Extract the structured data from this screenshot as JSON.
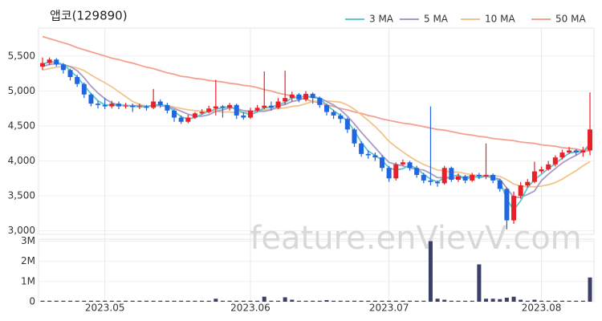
{
  "chart_data": {
    "type": "candlestick",
    "title": "앱코(129890)",
    "watermark": "feature.enVievV.com",
    "categories": [
      null,
      null,
      null,
      null,
      null,
      null,
      null,
      null,
      null,
      "2023.05",
      null,
      null,
      null,
      null,
      null,
      null,
      null,
      null,
      null,
      null,
      null,
      null,
      null,
      null,
      null,
      null,
      null,
      null,
      null,
      null,
      "2023.06",
      null,
      null,
      null,
      null,
      null,
      null,
      null,
      null,
      null,
      null,
      null,
      null,
      null,
      null,
      null,
      null,
      null,
      null,
      null,
      "2023.07",
      null,
      null,
      null,
      null,
      null,
      null,
      null,
      null,
      null,
      null,
      null,
      null,
      null,
      null,
      null,
      null,
      null,
      null,
      null,
      null,
      null,
      "2023.08",
      null,
      null,
      null,
      null,
      null,
      null,
      null
    ],
    "open": [
      5350,
      5400,
      5450,
      5380,
      5300,
      5200,
      5100,
      4950,
      4820,
      4800,
      4780,
      4820,
      4780,
      4790,
      4770,
      4780,
      4760,
      4850,
      4800,
      4720,
      4620,
      4560,
      4620,
      4680,
      4700,
      4750,
      4780,
      4760,
      4800,
      4650,
      4620,
      4720,
      4760,
      4790,
      4760,
      4850,
      4900,
      4950,
      4880,
      4960,
      4900,
      4800,
      4700,
      4650,
      4600,
      4450,
      4250,
      4100,
      4080,
      4050,
      3900,
      3750,
      3950,
      3980,
      3900,
      3800,
      3720,
      3700,
      3680,
      3900,
      3730,
      3780,
      3720,
      3800,
      3780,
      3800,
      3720,
      3600,
      3150,
      3500,
      3650,
      3700,
      3850,
      3880,
      3950,
      4050,
      4120,
      4150,
      4120,
      4150
    ],
    "high": [
      5480,
      5480,
      5470,
      5400,
      5320,
      5230,
      5120,
      4970,
      4860,
      4900,
      4860,
      4850,
      4830,
      4820,
      4820,
      4800,
      5030,
      4880,
      4830,
      4740,
      4650,
      4660,
      4700,
      4740,
      4790,
      5160,
      4800,
      4830,
      4820,
      4700,
      4760,
      4800,
      5280,
      4850,
      4900,
      5290,
      4990,
      4970,
      5000,
      4980,
      4920,
      4820,
      4730,
      4680,
      4620,
      4470,
      4280,
      4150,
      4120,
      4080,
      3930,
      3980,
      4020,
      4000,
      3930,
      3830,
      4780,
      3720,
      3930,
      3920,
      3820,
      3800,
      3830,
      3830,
      4250,
      3820,
      3740,
      3620,
      3560,
      3700,
      3740,
      3990,
      3920,
      4000,
      4080,
      4160,
      4200,
      4170,
      4200,
      4980
    ],
    "low": [
      5300,
      5370,
      5350,
      5250,
      5150,
      5060,
      4900,
      4780,
      4750,
      4740,
      4750,
      4740,
      4750,
      4700,
      4740,
      4720,
      4740,
      4760,
      4680,
      4560,
      4530,
      4540,
      4600,
      4660,
      4680,
      4650,
      4620,
      4720,
      4600,
      4590,
      4600,
      4700,
      4740,
      4720,
      4740,
      4800,
      4850,
      4840,
      4850,
      4820,
      4760,
      4650,
      4600,
      4540,
      4400,
      4200,
      4060,
      4030,
      4000,
      3850,
      3700,
      3720,
      3930,
      3860,
      3760,
      3680,
      3650,
      3630,
      3660,
      3700,
      3700,
      3680,
      3700,
      3740,
      3740,
      3680,
      3560,
      3020,
      3100,
      3460,
      3620,
      3680,
      3820,
      3860,
      3920,
      4020,
      4100,
      4080,
      4060,
      4080
    ],
    "close": [
      5400,
      5450,
      5380,
      5300,
      5200,
      5100,
      4950,
      4820,
      4800,
      4780,
      4820,
      4780,
      4790,
      4770,
      4780,
      4760,
      4850,
      4800,
      4720,
      4620,
      4560,
      4620,
      4680,
      4700,
      4750,
      4780,
      4760,
      4800,
      4650,
      4620,
      4720,
      4760,
      4790,
      4760,
      4850,
      4900,
      4950,
      4880,
      4960,
      4900,
      4800,
      4700,
      4650,
      4600,
      4450,
      4250,
      4100,
      4080,
      4050,
      3900,
      3750,
      3950,
      3980,
      3900,
      3800,
      3720,
      3700,
      3680,
      3900,
      3730,
      3780,
      3720,
      3800,
      3780,
      3800,
      3720,
      3600,
      3150,
      3500,
      3650,
      3700,
      3850,
      3880,
      3950,
      4050,
      4120,
      4150,
      4120,
      4150,
      4450
    ],
    "volume": [
      50000,
      50000,
      50000,
      50000,
      50000,
      50000,
      50000,
      50000,
      50000,
      50000,
      50000,
      50000,
      50000,
      50000,
      50000,
      50000,
      50000,
      50000,
      50000,
      50000,
      50000,
      50000,
      50000,
      50000,
      50000,
      150000,
      50000,
      50000,
      50000,
      50000,
      50000,
      50000,
      250000,
      50000,
      50000,
      220000,
      100000,
      50000,
      50000,
      50000,
      50000,
      80000,
      50000,
      50000,
      50000,
      50000,
      50000,
      50000,
      50000,
      50000,
      50000,
      50000,
      50000,
      50000,
      50000,
      50000,
      3000000,
      150000,
      100000,
      50000,
      50000,
      50000,
      50000,
      1850000,
      150000,
      150000,
      130000,
      200000,
      250000,
      100000,
      50000,
      100000,
      50000,
      50000,
      50000,
      50000,
      50000,
      50000,
      50000,
      1200000
    ],
    "up_color": "#e8202a",
    "down_color": "#1f66e0",
    "volume_color": "#3b4066",
    "grid": true,
    "moving_averages": [
      {
        "name": "3 MA",
        "color": "#5cc8c8",
        "values": [
          5380,
          5420,
          5410,
          5380,
          5290,
          5200,
          5080,
          4960,
          4860,
          4800,
          4800,
          4790,
          4800,
          4780,
          4780,
          4770,
          4800,
          4800,
          4790,
          4710,
          4630,
          4600,
          4620,
          4670,
          4710,
          4740,
          4760,
          4780,
          4740,
          4690,
          4660,
          4700,
          4760,
          4770,
          4800,
          4840,
          4900,
          4910,
          4930,
          4910,
          4890,
          4800,
          4720,
          4650,
          4570,
          4430,
          4270,
          4140,
          4080,
          4010,
          3900,
          3870,
          3890,
          3940,
          3890,
          3810,
          3740,
          3700,
          3760,
          3770,
          3800,
          3740,
          3770,
          3770,
          3790,
          3770,
          3710,
          3450,
          3300,
          3430,
          3620,
          3730,
          3810,
          3890,
          3960,
          4040,
          4110,
          4130,
          4140,
          4240
        ]
      },
      {
        "name": "5 MA",
        "color": "#a99bc6",
        "values": [
          5350,
          5380,
          5390,
          5380,
          5350,
          5290,
          5190,
          5070,
          4970,
          4890,
          4830,
          4800,
          4790,
          4790,
          4790,
          4780,
          4790,
          4790,
          4780,
          4750,
          4710,
          4670,
          4640,
          4640,
          4660,
          4710,
          4730,
          4760,
          4750,
          4720,
          4710,
          4710,
          4710,
          4730,
          4780,
          4810,
          4850,
          4870,
          4910,
          4920,
          4900,
          4850,
          4800,
          4730,
          4640,
          4530,
          4410,
          4300,
          4190,
          4080,
          3980,
          3950,
          3930,
          3900,
          3880,
          3870,
          3820,
          3760,
          3760,
          3750,
          3760,
          3760,
          3790,
          3760,
          3780,
          3760,
          3740,
          3610,
          3480,
          3480,
          3520,
          3570,
          3720,
          3810,
          3890,
          3970,
          4030,
          4080,
          4140,
          4200
        ]
      },
      {
        "name": "10 MA",
        "color": "#f2c48a",
        "values": [
          5300,
          5320,
          5340,
          5350,
          5350,
          5330,
          5290,
          5230,
          5170,
          5120,
          5060,
          4990,
          4920,
          4850,
          4810,
          4780,
          4800,
          4800,
          4790,
          4770,
          4750,
          4730,
          4720,
          4710,
          4710,
          4710,
          4700,
          4700,
          4690,
          4690,
          4710,
          4720,
          4730,
          4740,
          4750,
          4760,
          4780,
          4790,
          4820,
          4850,
          4860,
          4860,
          4850,
          4840,
          4800,
          4740,
          4660,
          4580,
          4490,
          4390,
          4280,
          4200,
          4130,
          4060,
          4000,
          3950,
          3910,
          3870,
          3860,
          3840,
          3840,
          3820,
          3800,
          3790,
          3790,
          3790,
          3780,
          3730,
          3670,
          3640,
          3630,
          3630,
          3640,
          3660,
          3690,
          3740,
          3800,
          3860,
          3930,
          3990
        ]
      },
      {
        "name": "50 MA",
        "color": "#f4a090",
        "values": [
          5780,
          5750,
          5720,
          5690,
          5660,
          5620,
          5590,
          5560,
          5530,
          5500,
          5470,
          5450,
          5420,
          5400,
          5370,
          5340,
          5320,
          5290,
          5260,
          5240,
          5210,
          5200,
          5180,
          5170,
          5150,
          5140,
          5130,
          5110,
          5100,
          5080,
          5070,
          5050,
          5020,
          5000,
          4970,
          4950,
          4930,
          4900,
          4880,
          4850,
          4830,
          4800,
          4780,
          4750,
          4730,
          4700,
          4680,
          4650,
          4630,
          4600,
          4580,
          4560,
          4540,
          4530,
          4510,
          4490,
          4470,
          4450,
          4440,
          4420,
          4400,
          4380,
          4370,
          4350,
          4340,
          4320,
          4310,
          4300,
          4290,
          4270,
          4260,
          4250,
          4230,
          4220,
          4210,
          4190,
          4180,
          4170,
          4150,
          4140
        ]
      }
    ],
    "ylim": [
      2950,
      5900
    ],
    "yticks": [
      {
        "value": 3000,
        "label": "3,000"
      },
      {
        "value": 3500,
        "label": "3,500"
      },
      {
        "value": 4000,
        "label": "4,000"
      },
      {
        "value": 4500,
        "label": "4,500"
      },
      {
        "value": 5000,
        "label": "5,000"
      },
      {
        "value": 5500,
        "label": "5,500"
      }
    ],
    "volume_ylim": [
      0,
      3100000
    ],
    "volume_yticks": [
      0,
      {
        "value": 1000000,
        "label": "1M"
      },
      {
        "value": 2000000,
        "label": "2M"
      },
      {
        "value": 3000000,
        "label": "3M"
      }
    ]
  }
}
